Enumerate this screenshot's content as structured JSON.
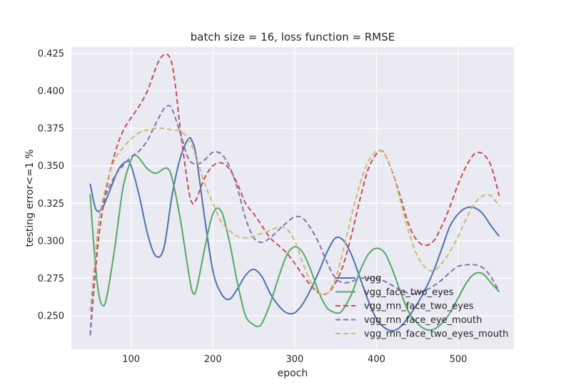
{
  "chart_data": {
    "type": "line",
    "title": "batch size = 16, loss function = RMSE",
    "xlabel": "epoch",
    "ylabel": "testing error<=1 %",
    "xlim": [
      27,
      568
    ],
    "ylim": [
      0.2277,
      0.4292
    ],
    "xticks": [
      100,
      200,
      300,
      400,
      500
    ],
    "yticks": [
      0.25,
      0.275,
      0.3,
      0.325,
      0.35,
      0.375,
      0.4,
      0.425
    ],
    "ytick_labels": [
      "0.250",
      "0.275",
      "0.300",
      "0.325",
      "0.350",
      "0.375",
      "0.400",
      "0.425"
    ],
    "grid": true,
    "legend_position": "lower-right",
    "series": [
      {
        "name": "vgg",
        "color": "#4c72b0",
        "dash": "solid",
        "x": [
          50,
          57,
          65,
          75,
          85,
          95,
          100,
          110,
          120,
          130,
          140,
          150,
          160,
          170,
          175,
          180,
          190,
          200,
          210,
          220,
          230,
          240,
          250,
          260,
          270,
          280,
          290,
          300,
          310,
          320,
          330,
          340,
          350,
          360,
          370,
          380,
          390,
          400,
          410,
          420,
          430,
          440,
          450,
          460,
          470,
          480,
          490,
          500,
          510,
          520,
          530,
          540,
          550
        ],
        "y": [
          0.338,
          0.321,
          0.322,
          0.335,
          0.348,
          0.353,
          0.35,
          0.33,
          0.305,
          0.29,
          0.295,
          0.33,
          0.355,
          0.368,
          0.366,
          0.355,
          0.315,
          0.28,
          0.265,
          0.261,
          0.268,
          0.277,
          0.281,
          0.276,
          0.265,
          0.257,
          0.252,
          0.252,
          0.258,
          0.268,
          0.28,
          0.293,
          0.302,
          0.3,
          0.29,
          0.275,
          0.26,
          0.248,
          0.242,
          0.24,
          0.243,
          0.25,
          0.258,
          0.268,
          0.28,
          0.295,
          0.31,
          0.318,
          0.322,
          0.322,
          0.318,
          0.31,
          0.303
        ]
      },
      {
        "name": "vgg_face_two_eyes",
        "color": "#55a868",
        "dash": "solid",
        "x": [
          50,
          55,
          60,
          65,
          70,
          80,
          90,
          100,
          105,
          110,
          120,
          130,
          140,
          145,
          150,
          160,
          170,
          175,
          180,
          190,
          200,
          210,
          220,
          230,
          240,
          250,
          255,
          260,
          270,
          280,
          290,
          300,
          310,
          320,
          330,
          340,
          350,
          355,
          360,
          370,
          380,
          390,
          400,
          410,
          420,
          430,
          440,
          450,
          460,
          470,
          480,
          490,
          500,
          510,
          520,
          530,
          540,
          550
        ],
        "y": [
          0.331,
          0.293,
          0.266,
          0.257,
          0.262,
          0.295,
          0.335,
          0.354,
          0.357,
          0.355,
          0.348,
          0.345,
          0.348,
          0.348,
          0.342,
          0.315,
          0.28,
          0.266,
          0.268,
          0.295,
          0.318,
          0.32,
          0.3,
          0.272,
          0.25,
          0.244,
          0.243,
          0.245,
          0.258,
          0.275,
          0.29,
          0.296,
          0.292,
          0.28,
          0.265,
          0.255,
          0.252,
          0.252,
          0.255,
          0.265,
          0.28,
          0.291,
          0.295,
          0.292,
          0.28,
          0.265,
          0.252,
          0.245,
          0.241,
          0.241,
          0.245,
          0.252,
          0.262,
          0.272,
          0.278,
          0.278,
          0.272,
          0.266
        ]
      },
      {
        "name": "vgg_rnn_face_two_eyes",
        "color": "#c44e52",
        "dash": "dashed",
        "x": [
          50,
          60,
          70,
          80,
          90,
          100,
          110,
          120,
          130,
          135,
          140,
          145,
          150,
          155,
          160,
          170,
          175,
          180,
          190,
          200,
          210,
          220,
          230,
          240,
          250,
          260,
          270,
          280,
          290,
          300,
          310,
          320,
          330,
          340,
          350,
          360,
          370,
          380,
          390,
          400,
          405,
          410,
          420,
          430,
          440,
          450,
          460,
          470,
          480,
          490,
          500,
          510,
          520,
          530,
          540,
          550
        ],
        "y": [
          0.237,
          0.3,
          0.335,
          0.358,
          0.373,
          0.382,
          0.39,
          0.4,
          0.415,
          0.421,
          0.424,
          0.424,
          0.418,
          0.4,
          0.375,
          0.335,
          0.325,
          0.328,
          0.342,
          0.35,
          0.352,
          0.348,
          0.338,
          0.325,
          0.318,
          0.31,
          0.302,
          0.297,
          0.292,
          0.285,
          0.277,
          0.27,
          0.265,
          0.265,
          0.272,
          0.285,
          0.305,
          0.328,
          0.348,
          0.358,
          0.36,
          0.358,
          0.345,
          0.328,
          0.31,
          0.3,
          0.297,
          0.3,
          0.31,
          0.323,
          0.338,
          0.35,
          0.358,
          0.358,
          0.35,
          0.33
        ]
      },
      {
        "name": "vgg_rnn_face_eye_mouth",
        "color": "#8172b2",
        "dash": "dashed",
        "x": [
          50,
          55,
          60,
          65,
          70,
          80,
          90,
          100,
          110,
          120,
          130,
          140,
          145,
          150,
          160,
          170,
          180,
          190,
          200,
          210,
          220,
          230,
          240,
          250,
          260,
          270,
          280,
          290,
          300,
          310,
          320,
          330,
          340,
          350,
          360,
          370,
          380,
          390,
          400,
          410,
          420,
          430,
          440,
          450,
          460,
          470,
          480,
          490,
          500,
          510,
          520,
          530,
          540,
          550
        ],
        "y": [
          0.237,
          0.28,
          0.31,
          0.325,
          0.332,
          0.343,
          0.35,
          0.356,
          0.36,
          0.367,
          0.378,
          0.388,
          0.39,
          0.388,
          0.372,
          0.355,
          0.351,
          0.354,
          0.359,
          0.358,
          0.35,
          0.335,
          0.315,
          0.302,
          0.299,
          0.302,
          0.307,
          0.312,
          0.316,
          0.315,
          0.308,
          0.298,
          0.285,
          0.275,
          0.272,
          0.273,
          0.275,
          0.275,
          0.275,
          0.273,
          0.27,
          0.267,
          0.265,
          0.265,
          0.267,
          0.27,
          0.274,
          0.279,
          0.283,
          0.284,
          0.284,
          0.282,
          0.276,
          0.266
        ]
      },
      {
        "name": "vgg_rnn_face_two_eyes_mouth",
        "color": "#ccb974",
        "dash": "dashed",
        "x": [
          50,
          60,
          70,
          80,
          90,
          100,
          110,
          120,
          130,
          140,
          150,
          160,
          170,
          180,
          190,
          200,
          210,
          220,
          230,
          240,
          250,
          260,
          270,
          280,
          290,
          300,
          310,
          320,
          330,
          340,
          350,
          360,
          370,
          380,
          390,
          400,
          405,
          410,
          420,
          430,
          440,
          450,
          460,
          470,
          480,
          490,
          500,
          510,
          520,
          530,
          540,
          550
        ],
        "y": [
          0.253,
          0.31,
          0.338,
          0.354,
          0.362,
          0.368,
          0.372,
          0.374,
          0.375,
          0.375,
          0.374,
          0.373,
          0.368,
          0.355,
          0.338,
          0.325,
          0.313,
          0.307,
          0.303,
          0.302,
          0.303,
          0.305,
          0.307,
          0.309,
          0.308,
          0.3,
          0.285,
          0.272,
          0.265,
          0.265,
          0.275,
          0.295,
          0.318,
          0.338,
          0.353,
          0.36,
          0.36,
          0.358,
          0.345,
          0.325,
          0.305,
          0.29,
          0.282,
          0.28,
          0.285,
          0.293,
          0.303,
          0.315,
          0.325,
          0.33,
          0.33,
          0.323
        ]
      }
    ]
  }
}
